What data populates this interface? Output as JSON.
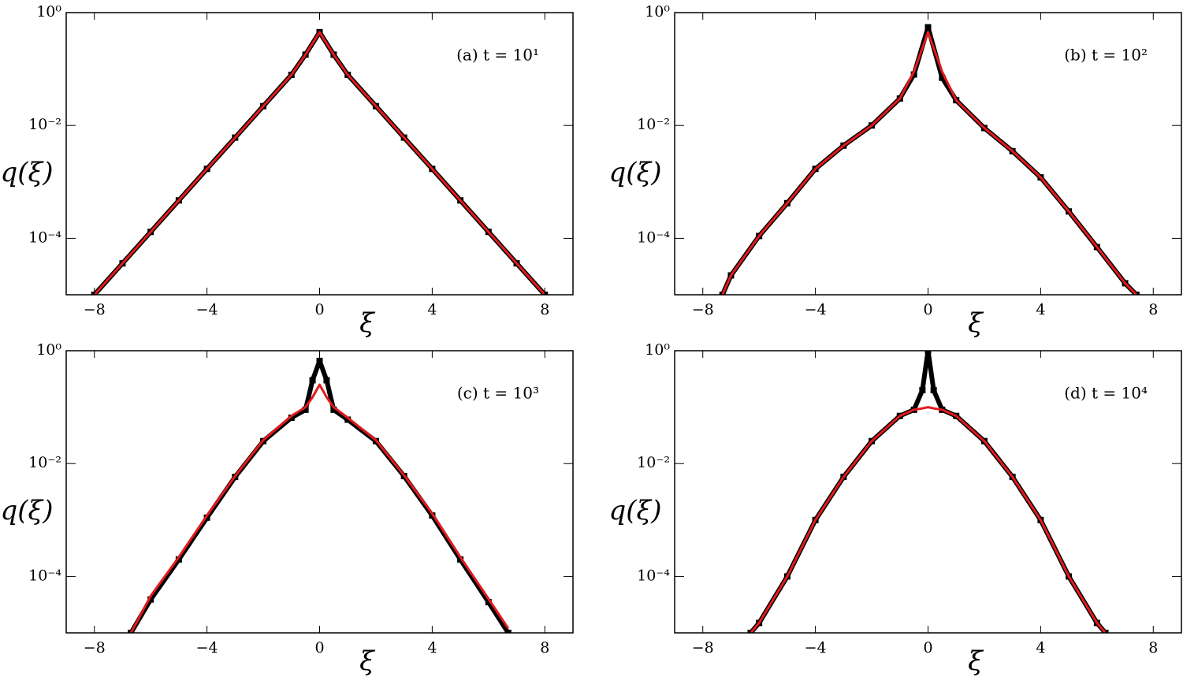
{
  "chart_data": [
    {
      "type": "line",
      "annotation": "(a) t = 10¹",
      "xlabel": "ξ",
      "ylabel": "q(ξ)",
      "ylog": true,
      "xlim": [
        -9,
        9
      ],
      "ylim": [
        1e-05,
        1
      ],
      "xticks": [
        {
          "value": -8,
          "label": "−8"
        },
        {
          "value": -4,
          "label": "−4"
        },
        0,
        4,
        8
      ],
      "yticks": [
        {
          "value": 1,
          "label": "10⁰"
        },
        {
          "value": 0.01,
          "label": "10⁻²"
        },
        {
          "value": 0.0001,
          "label": "10⁻⁴"
        }
      ],
      "x": [
        -8,
        -7,
        -6,
        -5,
        -4,
        -3,
        -2,
        -1,
        -0.5,
        0,
        0.5,
        1,
        2,
        3,
        4,
        5,
        6,
        7,
        8
      ],
      "series": [
        {
          "color": "#000000",
          "values": [
            1e-05,
            3.6e-05,
            0.00013,
            0.00047,
            0.0017,
            0.0061,
            0.022,
            0.079,
            0.18,
            0.45,
            0.18,
            0.079,
            0.022,
            0.0061,
            0.0017,
            0.00047,
            0.00013,
            3.6e-05,
            1e-05
          ]
        },
        {
          "color": "#e41a1c",
          "values": [
            1e-05,
            3.6e-05,
            0.00013,
            0.00047,
            0.0017,
            0.0061,
            0.022,
            0.079,
            0.18,
            0.45,
            0.18,
            0.079,
            0.022,
            0.0061,
            0.0017,
            0.00047,
            0.00013,
            3.6e-05,
            1e-05
          ]
        }
      ]
    },
    {
      "type": "line",
      "annotation": "(b) t = 10²",
      "xlabel": "ξ",
      "ylabel": "q(ξ)",
      "ylog": true,
      "xlim": [
        -9,
        9
      ],
      "ylim": [
        1e-05,
        1
      ],
      "xticks": [
        {
          "value": -8,
          "label": "−8"
        },
        {
          "value": -4,
          "label": "−4"
        },
        0,
        4,
        8
      ],
      "yticks": [
        {
          "value": 1,
          "label": "10⁰"
        },
        {
          "value": 0.01,
          "label": "10⁻²"
        },
        {
          "value": 0.0001,
          "label": "10⁻⁴"
        }
      ],
      "x": [
        -7.3,
        -7,
        -6,
        -5,
        -4,
        -3,
        -2,
        -1,
        -0.5,
        0,
        0.5,
        1,
        2,
        3,
        4,
        5,
        6,
        7,
        7.4
      ],
      "series": [
        {
          "color": "#000000",
          "values": [
            1e-05,
            2.2e-05,
            0.00011,
            0.00042,
            0.0017,
            0.0044,
            0.01,
            0.03,
            0.08,
            0.55,
            0.07,
            0.028,
            0.009,
            0.0035,
            0.0012,
            0.0003,
            7e-05,
            1.6e-05,
            1e-05
          ]
        },
        {
          "color": "#e41a1c",
          "values": [
            1e-05,
            2.2e-05,
            0.00011,
            0.00042,
            0.0017,
            0.0044,
            0.01,
            0.03,
            0.09,
            0.45,
            0.09,
            0.028,
            0.009,
            0.0035,
            0.0012,
            0.0003,
            7e-05,
            1.6e-05,
            1e-05
          ]
        }
      ]
    },
    {
      "type": "line",
      "annotation": "(c) t = 10³",
      "xlabel": "ξ",
      "ylabel": "q(ξ)",
      "ylog": true,
      "xlim": [
        -9,
        9
      ],
      "ylim": [
        1e-05,
        1
      ],
      "xticks": [
        {
          "value": -8,
          "label": "−8"
        },
        {
          "value": -4,
          "label": "−4"
        },
        0,
        4,
        8
      ],
      "yticks": [
        {
          "value": 1,
          "label": "10⁰"
        },
        {
          "value": 0.01,
          "label": "10⁻²"
        },
        {
          "value": 0.0001,
          "label": "10⁻⁴"
        }
      ],
      "x": [
        -6.7,
        -6,
        -5,
        -4,
        -3,
        -2,
        -1,
        -0.5,
        -0.25,
        0,
        0.25,
        0.5,
        1,
        2,
        3,
        4,
        5,
        6,
        6.7
      ],
      "series": [
        {
          "color": "#000000",
          "values": [
            1e-05,
            3.9e-05,
            0.0002,
            0.0011,
            0.0058,
            0.025,
            0.065,
            0.09,
            0.3,
            0.66,
            0.3,
            0.09,
            0.06,
            0.025,
            0.006,
            0.0012,
            0.0002,
            3.5e-05,
            1e-05
          ]
        },
        {
          "color": "#e41a1c",
          "values": [
            1e-05,
            4.5e-05,
            0.00022,
            0.0012,
            0.006,
            0.026,
            0.07,
            0.1,
            0.15,
            0.25,
            0.15,
            0.1,
            0.065,
            0.026,
            0.0062,
            0.0013,
            0.00022,
            4e-05,
            1.2e-05
          ]
        }
      ]
    },
    {
      "type": "line",
      "annotation": "(d) t = 10⁴",
      "xlabel": "ξ",
      "ylabel": "q(ξ)",
      "ylog": true,
      "xlim": [
        -9,
        9
      ],
      "ylim": [
        1e-05,
        1
      ],
      "xticks": [
        {
          "value": -8,
          "label": "−8"
        },
        {
          "value": -4,
          "label": "−4"
        },
        0,
        4,
        8
      ],
      "yticks": [
        {
          "value": 1,
          "label": "10⁰"
        },
        {
          "value": 0.01,
          "label": "10⁻²"
        },
        {
          "value": 0.0001,
          "label": "10⁻⁴"
        }
      ],
      "x": [
        -6.3,
        -6,
        -5,
        -4,
        -3,
        -2,
        -1,
        -0.5,
        -0.2,
        0,
        0.2,
        0.5,
        1,
        2,
        3,
        4,
        5,
        6,
        6.3
      ],
      "series": [
        {
          "color": "#000000",
          "values": [
            1e-05,
            1.5e-05,
            0.0001,
            0.001,
            0.0058,
            0.025,
            0.07,
            0.09,
            0.2,
            1,
            0.2,
            0.09,
            0.07,
            0.025,
            0.0058,
            0.001,
            0.0001,
            1.5e-05,
            1e-05
          ]
        },
        {
          "color": "#e41a1c",
          "values": [
            1e-05,
            1.5e-05,
            0.0001,
            0.001,
            0.0058,
            0.025,
            0.07,
            0.09,
            0.095,
            0.1,
            0.095,
            0.09,
            0.07,
            0.025,
            0.0058,
            0.001,
            0.0001,
            1.5e-05,
            1e-05
          ]
        }
      ]
    }
  ]
}
